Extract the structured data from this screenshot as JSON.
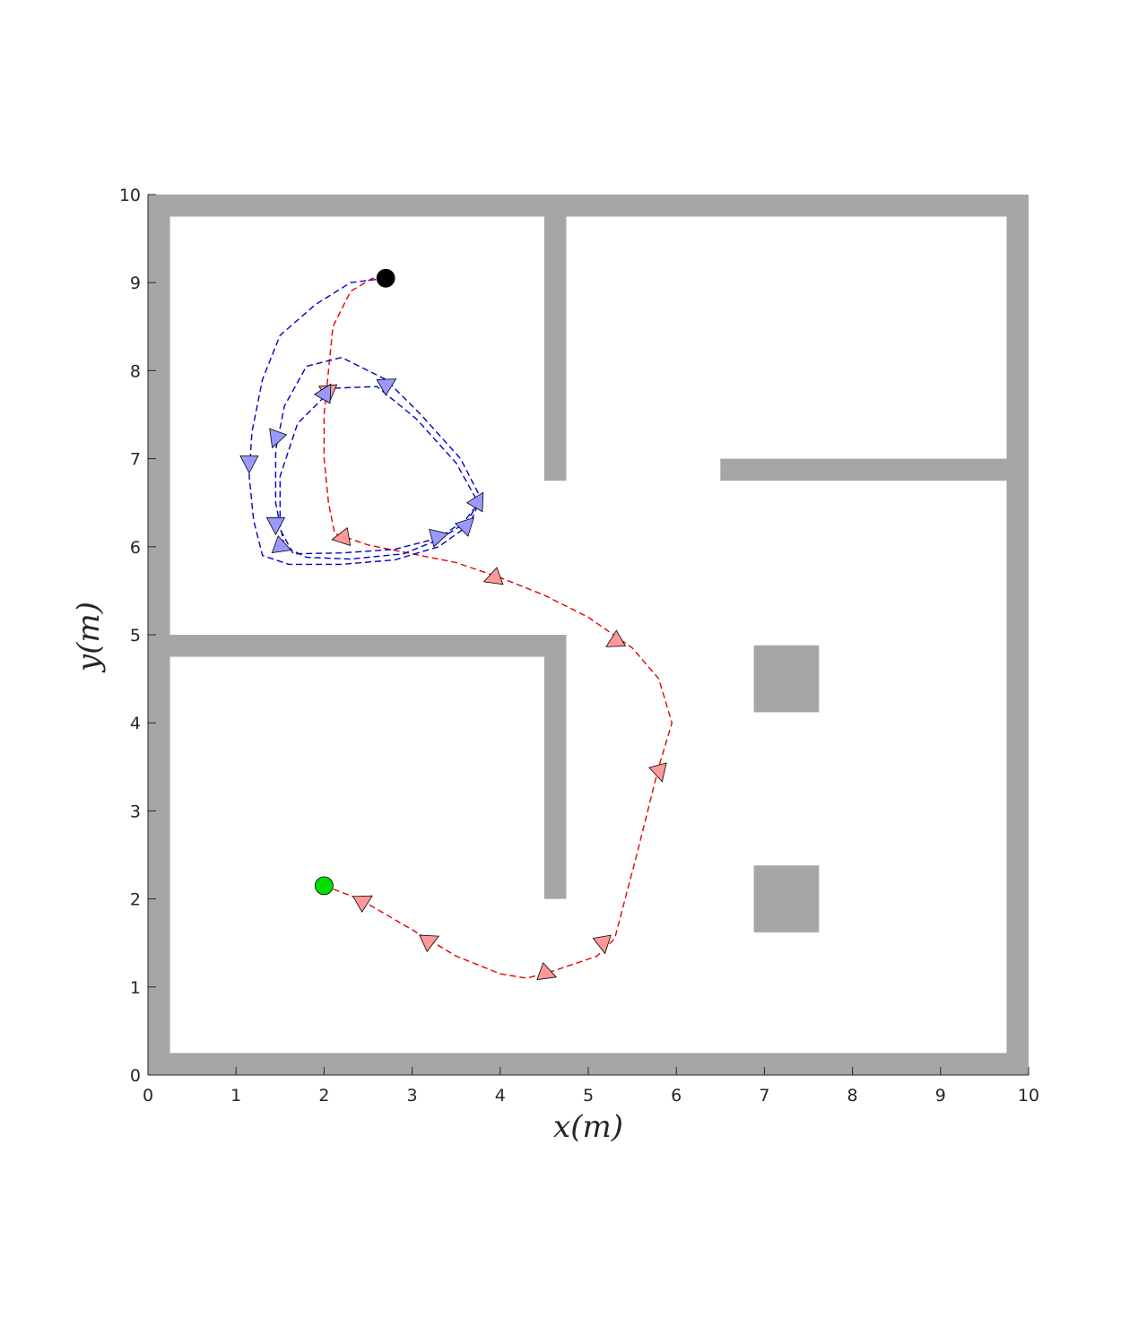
{
  "chart_data": {
    "type": "scatter",
    "title": "",
    "xlabel": "x(m)",
    "ylabel": "y(m)",
    "xlim": [
      0,
      10
    ],
    "ylim": [
      0,
      10
    ],
    "xticks": [
      "0",
      "1",
      "2",
      "3",
      "4",
      "5",
      "6",
      "7",
      "8",
      "9",
      "10"
    ],
    "yticks": [
      "0",
      "1",
      "2",
      "3",
      "4",
      "5",
      "6",
      "7",
      "8",
      "9",
      "10"
    ],
    "grid": false,
    "legend": "none",
    "colors": {
      "wall": "#a6a6a6",
      "red_path": "#e60000",
      "red_marker": "#ff9999",
      "blue_path": "#0000cc",
      "blue_marker": "#9999ff",
      "start": "#00dd00",
      "end": "#000000"
    },
    "walls": [
      {
        "x0": 0,
        "y0": 0,
        "x1": 10,
        "y1": 0.25
      },
      {
        "x0": 0,
        "y0": 9.75,
        "x1": 10,
        "y1": 10
      },
      {
        "x0": 0,
        "y0": 0,
        "x1": 0.25,
        "y1": 10
      },
      {
        "x0": 9.75,
        "y0": 0,
        "x1": 10,
        "y1": 10
      },
      {
        "x0": 4.5,
        "y0": 6.75,
        "x1": 4.75,
        "y1": 10
      },
      {
        "x0": 6.5,
        "y0": 6.75,
        "x1": 10,
        "y1": 7.0
      },
      {
        "x0": 0,
        "y0": 4.75,
        "x1": 4.75,
        "y1": 5.0
      },
      {
        "x0": 4.5,
        "y0": 2.0,
        "x1": 4.75,
        "y1": 4.75
      },
      {
        "x0": 6.88,
        "y0": 4.12,
        "x1": 7.62,
        "y1": 4.88
      },
      {
        "x0": 6.88,
        "y0": 1.62,
        "x1": 7.62,
        "y1": 2.38
      }
    ],
    "start_point": {
      "x": 2.0,
      "y": 2.15
    },
    "end_point": {
      "x": 2.7,
      "y": 9.05
    },
    "series": [
      {
        "color": "red",
        "path": [
          [
            2.0,
            2.15
          ],
          [
            2.4,
            2.0
          ],
          [
            3.0,
            1.65
          ],
          [
            3.5,
            1.35
          ],
          [
            4.0,
            1.15
          ],
          [
            4.3,
            1.1
          ],
          [
            4.6,
            1.18
          ],
          [
            5.1,
            1.35
          ],
          [
            5.3,
            1.55
          ],
          [
            5.55,
            2.5
          ],
          [
            5.8,
            3.5
          ],
          [
            5.95,
            4.0
          ],
          [
            5.8,
            4.5
          ],
          [
            5.5,
            4.85
          ],
          [
            5.0,
            5.2
          ],
          [
            4.5,
            5.45
          ],
          [
            4.0,
            5.65
          ],
          [
            3.5,
            5.82
          ],
          [
            3.0,
            5.92
          ],
          [
            2.5,
            6.02
          ],
          [
            2.12,
            6.15
          ],
          [
            2.05,
            6.5
          ],
          [
            2.0,
            7.0
          ],
          [
            2.0,
            7.5
          ],
          [
            2.05,
            8.0
          ],
          [
            2.1,
            8.5
          ],
          [
            2.3,
            8.9
          ],
          [
            2.55,
            9.05
          ],
          [
            2.7,
            9.05
          ]
        ],
        "markers": [
          {
            "x": 2.45,
            "y": 1.98,
            "dir": -30
          },
          {
            "x": 3.2,
            "y": 1.53,
            "dir": -25
          },
          {
            "x": 4.53,
            "y": 1.15,
            "dir": 20
          },
          {
            "x": 5.17,
            "y": 1.49,
            "dir": 80
          },
          {
            "x": 5.81,
            "y": 3.44,
            "dir": 75
          },
          {
            "x": 5.3,
            "y": 4.92,
            "dir": 150
          },
          {
            "x": 3.92,
            "y": 5.64,
            "dir": 160
          },
          {
            "x": 2.2,
            "y": 6.1,
            "dir": 170
          },
          {
            "x": 2.05,
            "y": 7.75,
            "dir": 85
          }
        ]
      },
      {
        "color": "blue",
        "path": [
          [
            2.7,
            9.05
          ],
          [
            2.3,
            9.0
          ],
          [
            1.9,
            8.75
          ],
          [
            1.5,
            8.4
          ],
          [
            1.3,
            7.9
          ],
          [
            1.18,
            7.3
          ],
          [
            1.15,
            6.8
          ],
          [
            1.2,
            6.3
          ],
          [
            1.3,
            5.9
          ],
          [
            1.6,
            5.8
          ],
          [
            2.2,
            5.8
          ],
          [
            2.8,
            5.85
          ],
          [
            3.3,
            6.0
          ],
          [
            3.65,
            6.25
          ],
          [
            3.78,
            6.55
          ],
          [
            3.55,
            7.0
          ],
          [
            3.1,
            7.5
          ],
          [
            2.7,
            7.9
          ],
          [
            2.2,
            8.15
          ],
          [
            1.8,
            8.05
          ],
          [
            1.55,
            7.6
          ],
          [
            1.45,
            7.1
          ],
          [
            1.45,
            6.5
          ],
          [
            1.55,
            6.0
          ],
          [
            1.8,
            5.88
          ],
          [
            2.3,
            5.86
          ],
          [
            2.9,
            5.92
          ],
          [
            3.3,
            6.08
          ],
          [
            3.62,
            6.28
          ],
          [
            3.75,
            6.5
          ],
          [
            3.5,
            6.95
          ],
          [
            3.05,
            7.45
          ],
          [
            2.6,
            7.82
          ],
          [
            2.1,
            7.8
          ],
          [
            1.7,
            7.4
          ],
          [
            1.5,
            6.8
          ],
          [
            1.5,
            6.2
          ],
          [
            1.65,
            5.92
          ],
          [
            2.2,
            5.93
          ],
          [
            2.8,
            5.97
          ],
          [
            3.3,
            6.1
          ],
          [
            3.6,
            6.3
          ],
          [
            3.72,
            6.45
          ]
        ],
        "markers": [
          {
            "x": 1.15,
            "y": 6.95,
            "dir": 90
          },
          {
            "x": 1.45,
            "y": 7.23,
            "dir": 110
          },
          {
            "x": 1.45,
            "y": 6.25,
            "dir": 90
          },
          {
            "x": 1.52,
            "y": 6.0,
            "dir": 20
          },
          {
            "x": 3.3,
            "y": 6.12,
            "dir": -15
          },
          {
            "x": 3.62,
            "y": 6.25,
            "dir": -45
          },
          {
            "x": 3.75,
            "y": 6.52,
            "dir": -60
          },
          {
            "x": 2.72,
            "y": 7.85,
            "dir": -30
          },
          {
            "x": 2.02,
            "y": 7.75,
            "dir": -60
          }
        ]
      }
    ]
  }
}
